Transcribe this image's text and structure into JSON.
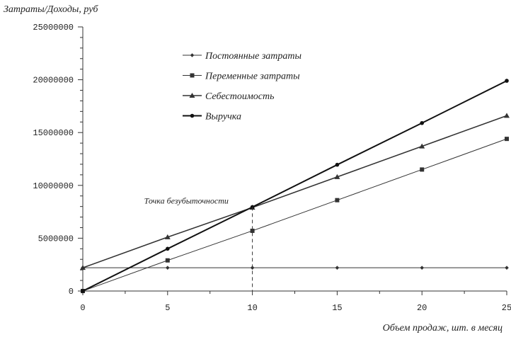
{
  "chart_data": {
    "type": "line",
    "ylabel": "Затраты/Доходы, руб",
    "xlabel": "Объем продаж, шт. в месяц",
    "x": [
      0,
      5,
      10,
      15,
      20,
      25
    ],
    "xlim": [
      0,
      25
    ],
    "ylim": [
      0,
      25000000
    ],
    "x_ticks": [
      "0",
      "5",
      "10",
      "15",
      "20",
      "25"
    ],
    "y_ticks": [
      "0",
      "5000000",
      "10000000",
      "15000000",
      "20000000",
      "25000000"
    ],
    "series": [
      {
        "name": "Постоянные затраты",
        "values": [
          2200000,
          2200000,
          2200000,
          2200000,
          2200000,
          2200000
        ],
        "marker": "diamond",
        "color": "#333333"
      },
      {
        "name": "Переменные затраты",
        "values": [
          0,
          2900000,
          5700000,
          8600000,
          11500000,
          14400000
        ],
        "marker": "square",
        "color": "#333333"
      },
      {
        "name": "Себестоимость",
        "values": [
          2200000,
          5100000,
          7900000,
          10800000,
          13700000,
          16600000
        ],
        "marker": "triangle",
        "color": "#333333"
      },
      {
        "name": "Выручка",
        "values": [
          0,
          4000000,
          7950000,
          11950000,
          15900000,
          19900000
        ],
        "marker": "circle",
        "color": "#111111"
      }
    ],
    "annotations": [
      {
        "text": "Точка безубыточности",
        "x": 10,
        "y": 7950000
      }
    ],
    "grid": false,
    "legend_position": "top-center"
  }
}
